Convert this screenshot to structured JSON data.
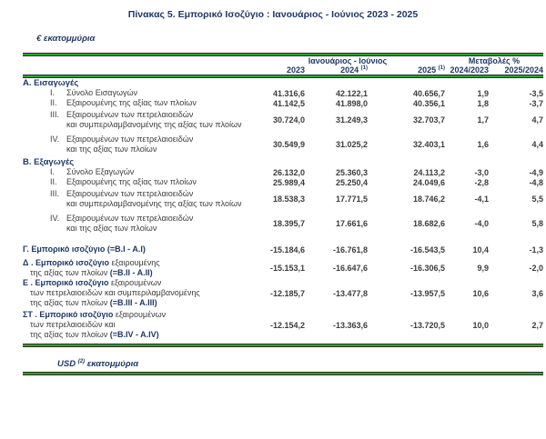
{
  "title": "Πίνακας 5. Εμπορικό Ισοζύγιο : Ιανουάριος - Ιούνιος 2023 - 2025",
  "unit_eur": "€ εκατομμύρια",
  "unit_usd": {
    "prefix": "USD",
    "sup": "(2)",
    "suffix": "εκατομμύρια"
  },
  "colors": {
    "accent_green": "#2ca62c",
    "heading_navy": "#1f3864",
    "body_text": "#3c3c3c"
  },
  "header": {
    "group_period": "Ιανουάριος - Ιούνιος",
    "group_changes": "Μεταβολές %",
    "cols": [
      {
        "label": "2023",
        "sup": ""
      },
      {
        "label": "2024",
        "sup": "(1)"
      },
      {
        "label": "2025",
        "sup": "(1)"
      },
      {
        "label": "2024/2023",
        "sup": ""
      },
      {
        "label": "2025/2024",
        "sup": ""
      }
    ]
  },
  "sections": [
    {
      "label": "Α. Εισαγωγές",
      "rows": [
        {
          "num": "I.",
          "lines": [
            [
              {
                "t": "Σύνολο Εισαγωγών"
              }
            ]
          ],
          "values": [
            "41.316,6",
            "42.122,1",
            "40.656,7",
            "1,9",
            "-3,5"
          ]
        },
        {
          "num": "II.",
          "lines": [
            [
              {
                "t": "Εξαιρουμένης της αξίας των πλοίων"
              }
            ]
          ],
          "values": [
            "41.142,5",
            "41.898,0",
            "40.356,1",
            "1,8",
            "-3,7"
          ]
        },
        {
          "num": "III.",
          "lines": [
            [
              {
                "t": "Εξαιρουμένων των πετρελαιοειδών"
              }
            ],
            [
              {
                "t": "και συμπεριλαμβανομένης της αξίας των πλοίων"
              }
            ]
          ],
          "values": [
            "30.724,0",
            "31.249,3",
            "32.703,7",
            "1,7",
            "4,7"
          ]
        },
        {
          "num": "IV.",
          "lines": [
            [
              {
                "t": "Εξαιρουμένων των πετρελαιοειδών"
              }
            ],
            [
              {
                "t": "και της αξίας των πλοίων"
              }
            ]
          ],
          "values": [
            "30.549,9",
            "31.025,2",
            "32.403,1",
            "1,6",
            "4,4"
          ]
        }
      ]
    },
    {
      "label": "Β. Εξαγωγές",
      "rows": [
        {
          "num": "I.",
          "lines": [
            [
              {
                "t": "Σύνολο Εξαγωγών"
              }
            ]
          ],
          "values": [
            "26.132,0",
            "25.360,3",
            "24.113,2",
            "-3,0",
            "-4,9"
          ]
        },
        {
          "num": "II.",
          "lines": [
            [
              {
                "t": "Εξαιρουμένης της αξίας των πλοίων"
              }
            ]
          ],
          "values": [
            "25.989,4",
            "25.250,4",
            "24.049,6",
            "-2,8",
            "-4,8"
          ]
        },
        {
          "num": "III.",
          "lines": [
            [
              {
                "t": "Εξαιρουμένων των πετρελαιοειδών"
              }
            ],
            [
              {
                "t": "και συμπεριλαμβανομένης της αξίας των πλοίων"
              }
            ]
          ],
          "values": [
            "18.538,3",
            "17.771,5",
            "18.746,2",
            "-4,1",
            "5,5"
          ]
        },
        {
          "num": "IV.",
          "lines": [
            [
              {
                "t": "Εξαιρουμένων των πετρελαιοειδών"
              }
            ],
            [
              {
                "t": "και της αξίας των πλοίων"
              }
            ]
          ],
          "values": [
            "18.395,7",
            "17.661,6",
            "18.682,6",
            "-4,0",
            "5,8"
          ]
        }
      ]
    },
    {
      "rows": [
        {
          "cls": "first",
          "lines": [
            [
              {
                "t": "Γ. Εμπορικό ισοζύγιο ",
                "b": true
              },
              {
                "t": "(=B.I - A.I)",
                "b": true
              }
            ]
          ],
          "values": [
            "-15.184,6",
            "-16.761,8",
            "-16.543,5",
            "10,4",
            "-1,3"
          ]
        },
        {
          "lines": [
            [
              {
                "t": "Δ . Εμπορικό ισοζύγιο ",
                "b": true
              },
              {
                "t": "εξαιρουμένης"
              }
            ],
            [
              {
                "t": "της αξίας των πλοίων ",
                "b": false
              },
              {
                "t": "(=B.II - A.II)",
                "b": true
              }
            ]
          ],
          "values": [
            "-15.153,1",
            "-16.647,6",
            "-16.306,5",
            "9,9",
            "-2,0"
          ]
        },
        {
          "lines": [
            [
              {
                "t": "Ε . Εμπορικό ισοζύγιο ",
                "b": true
              },
              {
                "t": "εξαιρουμένων"
              }
            ],
            [
              {
                "t": "των πετρελαιοειδών και συμπεριλαμβανομένης"
              }
            ],
            [
              {
                "t": "της αξίας των πλοίων ",
                "b": false
              },
              {
                "t": "(=B.III - A.III)",
                "b": true
              }
            ]
          ],
          "values": [
            "-12.185,7",
            "-13.477,8",
            "-13.957,5",
            "10,6",
            "3,6"
          ]
        },
        {
          "cls": "last",
          "lines": [
            [
              {
                "t": "ΣΤ . Εμπορικό ισοζύγιο ",
                "b": true
              },
              {
                "t": "εξαιρουμένων"
              }
            ],
            [
              {
                "t": "των πετρελαιοειδών και"
              }
            ],
            [
              {
                "t": "της αξίας των πλοίων ",
                "b": false
              },
              {
                "t": "(=B.IV - A.IV)",
                "b": true
              }
            ]
          ],
          "values": [
            "-12.154,2",
            "-13.363,6",
            "-13.720,5",
            "10,0",
            "2,7"
          ]
        }
      ]
    }
  ]
}
